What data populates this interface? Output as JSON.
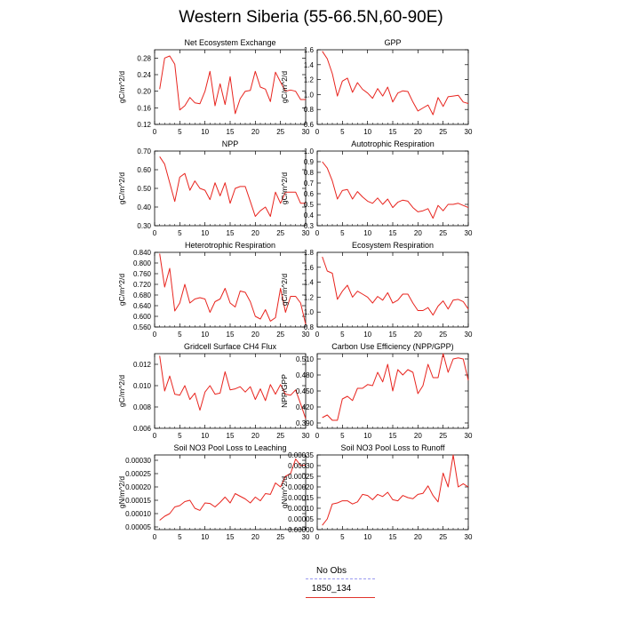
{
  "title": "Western Siberia (55-66.5N,60-90E)",
  "legend": [
    {
      "label": "No Obs",
      "color": "#9a9af0",
      "dash": true
    },
    {
      "label": "1850_134",
      "color": "#e0342c",
      "dash": false
    }
  ],
  "line_color": "#e8241e",
  "chart_data": [
    {
      "type": "line",
      "title": "Net Ecosystem Exchange",
      "xlabel": "",
      "ylabel": "gC/m^2/d",
      "xlim": [
        0,
        30
      ],
      "ylim": [
        0.12,
        0.3
      ],
      "xticks": [
        0,
        5,
        10,
        15,
        20,
        25,
        30
      ],
      "xtick_labels": [
        "0",
        "5",
        "10",
        "15",
        "20",
        "25",
        "30"
      ],
      "yticks": [
        0.12,
        0.16,
        0.2,
        0.24,
        0.28
      ],
      "ytick_labels": [
        "0.12",
        "0.16",
        "0.20",
        "0.24",
        "0.28"
      ],
      "series": [
        {
          "x": [
            1,
            2,
            3,
            4,
            5,
            6,
            7,
            8,
            9,
            10,
            11,
            12,
            13,
            14,
            15,
            16,
            17,
            18,
            19,
            20,
            21,
            22,
            23,
            24,
            25,
            26,
            27,
            28,
            29,
            30
          ],
          "values": [
            0.205,
            0.28,
            0.285,
            0.265,
            0.155,
            0.165,
            0.185,
            0.172,
            0.17,
            0.2,
            0.248,
            0.165,
            0.218,
            0.168,
            0.235,
            0.146,
            0.182,
            0.2,
            0.202,
            0.248,
            0.21,
            0.205,
            0.175,
            0.246,
            0.222,
            0.2,
            0.203,
            0.2,
            0.18,
            0.18
          ]
        }
      ]
    },
    {
      "type": "line",
      "title": "GPP",
      "xlabel": "",
      "ylabel": "gC/m^2/d",
      "xlim": [
        0,
        30
      ],
      "ylim": [
        0.6,
        1.6
      ],
      "xticks": [
        0,
        5,
        10,
        15,
        20,
        25,
        30
      ],
      "xtick_labels": [
        "0",
        "5",
        "10",
        "15",
        "20",
        "25",
        "30"
      ],
      "yticks": [
        0.6,
        0.8,
        1.0,
        1.2,
        1.4,
        1.6
      ],
      "ytick_labels": [
        "0.6",
        "0.8",
        "1.0",
        "1.2",
        "1.4",
        "1.6"
      ],
      "series": [
        {
          "x": [
            1,
            2,
            3,
            4,
            5,
            6,
            7,
            8,
            9,
            10,
            11,
            12,
            13,
            14,
            15,
            16,
            17,
            18,
            19,
            20,
            21,
            22,
            23,
            24,
            25,
            26,
            27,
            28,
            29,
            30
          ],
          "values": [
            1.58,
            1.48,
            1.28,
            0.98,
            1.18,
            1.22,
            1.03,
            1.16,
            1.07,
            1.02,
            0.95,
            1.08,
            0.98,
            1.1,
            0.9,
            1.02,
            1.05,
            1.04,
            0.9,
            0.78,
            0.82,
            0.86,
            0.73,
            0.96,
            0.84,
            0.97,
            0.98,
            0.99,
            0.9,
            0.88
          ]
        }
      ]
    },
    {
      "type": "line",
      "title": "NPP",
      "xlabel": "",
      "ylabel": "gC/m^2/d",
      "xlim": [
        0,
        30
      ],
      "ylim": [
        0.3,
        0.7
      ],
      "xticks": [
        0,
        5,
        10,
        15,
        20,
        25,
        30
      ],
      "xtick_labels": [
        "0",
        "5",
        "10",
        "15",
        "20",
        "25",
        "30"
      ],
      "yticks": [
        0.3,
        0.4,
        0.5,
        0.6,
        0.7
      ],
      "ytick_labels": [
        "0.30",
        "0.40",
        "0.50",
        "0.60",
        "0.70"
      ],
      "series": [
        {
          "x": [
            1,
            2,
            3,
            4,
            5,
            6,
            7,
            8,
            9,
            10,
            11,
            12,
            13,
            14,
            15,
            16,
            17,
            18,
            19,
            20,
            21,
            22,
            23,
            24,
            25,
            26,
            27,
            28,
            29,
            30
          ],
          "values": [
            0.67,
            0.63,
            0.53,
            0.43,
            0.56,
            0.58,
            0.49,
            0.54,
            0.5,
            0.49,
            0.44,
            0.53,
            0.46,
            0.53,
            0.42,
            0.5,
            0.51,
            0.51,
            0.43,
            0.35,
            0.38,
            0.4,
            0.35,
            0.48,
            0.42,
            0.48,
            0.48,
            0.48,
            0.42,
            0.42
          ]
        }
      ]
    },
    {
      "type": "line",
      "title": "Autotrophic Respiration",
      "xlabel": "",
      "ylabel": "gC/m^2/d",
      "xlim": [
        0,
        30
      ],
      "ylim": [
        0.3,
        1.0
      ],
      "xticks": [
        0,
        5,
        10,
        15,
        20,
        25,
        30
      ],
      "xtick_labels": [
        "0",
        "5",
        "10",
        "15",
        "20",
        "25",
        "30"
      ],
      "yticks": [
        0.3,
        0.4,
        0.5,
        0.6,
        0.7,
        0.8,
        0.9,
        1.0
      ],
      "ytick_labels": [
        "0.3",
        "0.4",
        "0.5",
        "0.6",
        "0.7",
        "0.8",
        "0.9",
        "1.0"
      ],
      "series": [
        {
          "x": [
            1,
            2,
            3,
            4,
            5,
            6,
            7,
            8,
            9,
            10,
            11,
            12,
            13,
            14,
            15,
            16,
            17,
            18,
            19,
            20,
            21,
            22,
            23,
            24,
            25,
            26,
            27,
            28,
            29,
            30
          ],
          "values": [
            0.9,
            0.84,
            0.72,
            0.55,
            0.63,
            0.64,
            0.55,
            0.62,
            0.57,
            0.53,
            0.51,
            0.56,
            0.5,
            0.55,
            0.47,
            0.52,
            0.54,
            0.53,
            0.47,
            0.43,
            0.44,
            0.46,
            0.37,
            0.49,
            0.44,
            0.5,
            0.5,
            0.51,
            0.49,
            0.47
          ]
        }
      ]
    },
    {
      "type": "line",
      "title": "Heterotrophic Respiration",
      "xlabel": "",
      "ylabel": "gC/m^2/d",
      "xlim": [
        0,
        30
      ],
      "ylim": [
        0.56,
        0.84
      ],
      "xticks": [
        0,
        5,
        10,
        15,
        20,
        25,
        30
      ],
      "xtick_labels": [
        "0",
        "5",
        "10",
        "15",
        "20",
        "25",
        "30"
      ],
      "yticks": [
        0.56,
        0.6,
        0.64,
        0.68,
        0.72,
        0.76,
        0.8,
        0.84
      ],
      "ytick_labels": [
        "0.560",
        "0.600",
        "0.640",
        "0.680",
        "0.720",
        "0.760",
        "0.800",
        "0.840"
      ],
      "series": [
        {
          "x": [
            1,
            2,
            3,
            4,
            5,
            6,
            7,
            8,
            9,
            10,
            11,
            12,
            13,
            14,
            15,
            16,
            17,
            18,
            19,
            20,
            21,
            22,
            23,
            24,
            25,
            26,
            27,
            28,
            29,
            30
          ],
          "values": [
            0.835,
            0.71,
            0.78,
            0.62,
            0.65,
            0.72,
            0.65,
            0.665,
            0.67,
            0.665,
            0.615,
            0.655,
            0.665,
            0.705,
            0.65,
            0.635,
            0.695,
            0.69,
            0.655,
            0.6,
            0.59,
            0.625,
            0.582,
            0.595,
            0.705,
            0.615,
            0.675,
            0.675,
            0.65,
            0.57
          ]
        }
      ]
    },
    {
      "type": "line",
      "title": "Ecosystem Respiration",
      "xlabel": "",
      "ylabel": "gC/m^2/d",
      "xlim": [
        0,
        30
      ],
      "ylim": [
        0.8,
        1.8
      ],
      "xticks": [
        0,
        5,
        10,
        15,
        20,
        25,
        30
      ],
      "xtick_labels": [
        "0",
        "5",
        "10",
        "15",
        "20",
        "25",
        "30"
      ],
      "yticks": [
        0.8,
        1.0,
        1.2,
        1.4,
        1.6,
        1.8
      ],
      "ytick_labels": [
        "0.8",
        "1.0",
        "1.2",
        "1.4",
        "1.6",
        "1.8"
      ],
      "series": [
        {
          "x": [
            1,
            2,
            3,
            4,
            5,
            6,
            7,
            8,
            9,
            10,
            11,
            12,
            13,
            14,
            15,
            16,
            17,
            18,
            19,
            20,
            21,
            22,
            23,
            24,
            25,
            26,
            27,
            28,
            29,
            30
          ],
          "values": [
            1.74,
            1.55,
            1.52,
            1.17,
            1.28,
            1.36,
            1.2,
            1.28,
            1.24,
            1.2,
            1.12,
            1.21,
            1.16,
            1.26,
            1.12,
            1.16,
            1.24,
            1.24,
            1.12,
            1.02,
            1.02,
            1.06,
            0.96,
            1.08,
            1.15,
            1.04,
            1.16,
            1.17,
            1.14,
            1.04
          ]
        }
      ]
    },
    {
      "type": "line",
      "title": "Gridcell Surface CH4 Flux",
      "xlabel": "",
      "ylabel": "gC/m^2/d",
      "xlim": [
        0,
        30
      ],
      "ylim": [
        0.006,
        0.013
      ],
      "xticks": [
        0,
        5,
        10,
        15,
        20,
        25,
        30
      ],
      "xtick_labels": [
        "0",
        "5",
        "10",
        "15",
        "20",
        "25",
        "30"
      ],
      "yticks": [
        0.006,
        0.008,
        0.01,
        0.012
      ],
      "ytick_labels": [
        "0.006",
        "0.008",
        "0.010",
        "0.012"
      ],
      "series": [
        {
          "x": [
            1,
            2,
            3,
            4,
            5,
            6,
            7,
            8,
            9,
            10,
            11,
            12,
            13,
            14,
            15,
            16,
            17,
            18,
            19,
            20,
            21,
            22,
            23,
            24,
            25,
            26,
            27,
            28,
            29,
            30
          ],
          "values": [
            0.0128,
            0.0095,
            0.0109,
            0.0092,
            0.0091,
            0.01,
            0.0087,
            0.0093,
            0.0077,
            0.0094,
            0.01,
            0.0092,
            0.0093,
            0.0113,
            0.0096,
            0.0097,
            0.0099,
            0.0094,
            0.0099,
            0.0087,
            0.0097,
            0.0086,
            0.0101,
            0.0092,
            0.0101,
            0.0092,
            0.0091,
            0.0096,
            0.0083,
            0.0069
          ]
        }
      ]
    },
    {
      "type": "line",
      "title": "Carbon Use Efficiency (NPP/GPP)",
      "xlabel": "",
      "ylabel": "NPP/GPP",
      "xlim": [
        0,
        30
      ],
      "ylim": [
        0.38,
        0.52
      ],
      "xticks": [
        0,
        5,
        10,
        15,
        20,
        25,
        30
      ],
      "xtick_labels": [
        "0",
        "5",
        "10",
        "15",
        "20",
        "25",
        "30"
      ],
      "yticks": [
        0.39,
        0.42,
        0.45,
        0.48,
        0.51
      ],
      "ytick_labels": [
        "0.390",
        "0.420",
        "0.450",
        "0.480",
        "0.510"
      ],
      "series": [
        {
          "x": [
            1,
            2,
            3,
            4,
            5,
            6,
            7,
            8,
            9,
            10,
            11,
            12,
            13,
            14,
            15,
            16,
            17,
            18,
            19,
            20,
            21,
            22,
            23,
            24,
            25,
            26,
            27,
            28,
            29,
            30
          ],
          "values": [
            0.4,
            0.405,
            0.395,
            0.395,
            0.435,
            0.44,
            0.432,
            0.455,
            0.455,
            0.462,
            0.46,
            0.485,
            0.467,
            0.5,
            0.45,
            0.49,
            0.48,
            0.49,
            0.485,
            0.445,
            0.46,
            0.5,
            0.475,
            0.475,
            0.52,
            0.485,
            0.51,
            0.512,
            0.51,
            0.47
          ]
        }
      ]
    },
    {
      "type": "line",
      "title": "Soil NO3 Pool Loss to Leaching",
      "xlabel": "",
      "ylabel": "gN/m^2/d",
      "xlim": [
        0,
        30
      ],
      "ylim": [
        4e-05,
        0.00032
      ],
      "xticks": [
        0,
        5,
        10,
        15,
        20,
        25,
        30
      ],
      "xtick_labels": [
        "0",
        "5",
        "10",
        "15",
        "20",
        "25",
        "30"
      ],
      "yticks": [
        5e-05,
        0.0001,
        0.00015,
        0.0002,
        0.00025,
        0.0003
      ],
      "ytick_labels": [
        "0.00005",
        "0.00010",
        "0.00015",
        "0.00020",
        "0.00025",
        "0.00030"
      ],
      "series": [
        {
          "x": [
            1,
            2,
            3,
            4,
            5,
            6,
            7,
            8,
            9,
            10,
            11,
            12,
            13,
            14,
            15,
            16,
            17,
            18,
            19,
            20,
            21,
            22,
            23,
            24,
            25,
            26,
            27,
            28,
            29,
            30
          ],
          "values": [
            7.5e-05,
            9e-05,
            0.0001,
            0.000125,
            0.00013,
            0.000145,
            0.00015,
            0.00012,
            0.000112,
            0.00014,
            0.000138,
            0.000125,
            0.000142,
            0.000162,
            0.00014,
            0.000175,
            0.000165,
            0.000155,
            0.00014,
            0.000162,
            0.000148,
            0.000175,
            0.000172,
            0.000215,
            0.0002,
            0.00024,
            0.00025,
            0.000305,
            0.00028,
            0.000282
          ]
        }
      ]
    },
    {
      "type": "line",
      "title": "Soil NO3 Pool Loss to Runoff",
      "xlabel": "",
      "ylabel": "gN/m^2/d",
      "xlim": [
        0,
        30
      ],
      "ylim": [
        0,
        0.00035
      ],
      "xticks": [
        0,
        5,
        10,
        15,
        20,
        25,
        30
      ],
      "xtick_labels": [
        "0",
        "5",
        "10",
        "15",
        "20",
        "25",
        "30"
      ],
      "yticks": [
        0,
        5e-05,
        0.0001,
        0.00015,
        0.0002,
        0.00025,
        0.0003,
        0.00035
      ],
      "ytick_labels": [
        "0.00000",
        "0.00005",
        "0.00010",
        "0.00015",
        "0.00020",
        "0.00025",
        "0.00030",
        "0.00035"
      ],
      "series": [
        {
          "x": [
            1,
            2,
            3,
            4,
            5,
            6,
            7,
            8,
            9,
            10,
            11,
            12,
            13,
            14,
            15,
            16,
            17,
            18,
            19,
            20,
            21,
            22,
            23,
            24,
            25,
            26,
            27,
            28,
            29,
            30
          ],
          "values": [
            2e-05,
            5e-05,
            0.00012,
            0.000125,
            0.000135,
            0.000135,
            0.00012,
            0.00013,
            0.000165,
            0.00016,
            0.00014,
            0.000165,
            0.000155,
            0.000175,
            0.00014,
            0.000135,
            0.00016,
            0.00015,
            0.000145,
            0.000165,
            0.00017,
            0.000205,
            0.00016,
            0.00013,
            0.000265,
            0.0002,
            0.00035,
            0.0002,
            0.000215,
            0.0002
          ]
        }
      ]
    }
  ]
}
